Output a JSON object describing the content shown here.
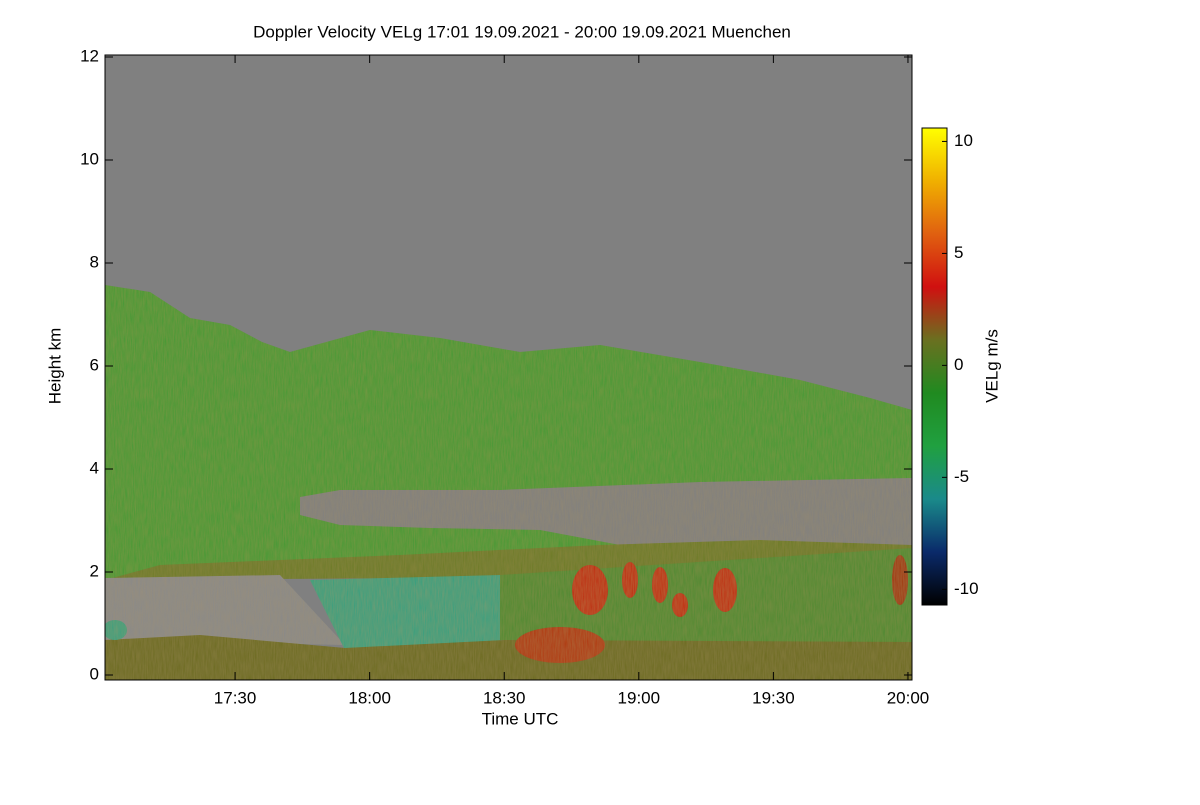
{
  "chart_data": {
    "type": "heatmap",
    "title": "Doppler Velocity VELg   17:01 19.09.2021 - 20:00 19.09.2021 Muenchen",
    "xlabel": "Time UTC",
    "ylabel": "Height km",
    "xlim": [
      17.0167,
      20.015
    ],
    "xticks": [
      {
        "value": 17.5,
        "label": "17:30"
      },
      {
        "value": 18,
        "label": "18:00"
      },
      {
        "value": 18.5,
        "label": "18:30"
      },
      {
        "value": 19,
        "label": "19:00"
      },
      {
        "value": 19.5,
        "label": "19:30"
      },
      {
        "value": 20,
        "label": "20:00"
      }
    ],
    "ylim": [
      0,
      12
    ],
    "yticks": [
      0,
      2,
      4,
      6,
      8,
      10,
      12
    ],
    "colorbar": {
      "label": "VELg m/s",
      "clim": [
        -10.7,
        10.6
      ],
      "ticks": [
        -10,
        -5,
        0,
        5,
        10
      ],
      "colors": [
        "#000000",
        "#0a2a6a",
        "#1a8a8a",
        "#20a040",
        "#208a20",
        "#6a7020",
        "#d01010",
        "#e06010",
        "#f0b000",
        "#ffff00"
      ]
    }
  }
}
